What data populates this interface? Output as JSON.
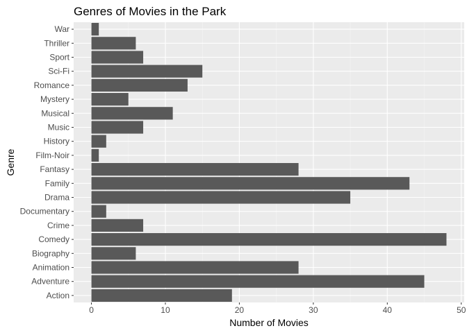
{
  "chart_data": {
    "type": "bar",
    "orientation": "horizontal",
    "title": "Genres of Movies in the Park",
    "xlabel": "Number of Movies",
    "ylabel": "Genre",
    "categories": [
      "Action",
      "Adventure",
      "Animation",
      "Biography",
      "Comedy",
      "Crime",
      "Documentary",
      "Drama",
      "Family",
      "Fantasy",
      "Film-Noir",
      "History",
      "Music",
      "Musical",
      "Mystery",
      "Romance",
      "Sci-Fi",
      "Sport",
      "Thriller",
      "War"
    ],
    "values": [
      19,
      45,
      28,
      6,
      48,
      7,
      2,
      35,
      43,
      28,
      1,
      2,
      7,
      11,
      5,
      13,
      15,
      7,
      6,
      1
    ],
    "xlim": [
      -2.4,
      50.4
    ],
    "x_ticks": [
      0,
      10,
      20,
      30,
      40,
      50
    ],
    "x_minor_ticks": [
      5,
      15,
      25,
      35,
      45
    ],
    "x_tick_labels": [
      "0",
      "10",
      "20",
      "30",
      "40",
      "50"
    ],
    "grid": true,
    "legend": "none",
    "colors": {
      "bar": "#595959",
      "panel": "#ebebeb",
      "grid_major": "#ffffff",
      "grid_minor": "#f5f5f5",
      "tick_text": "#4d4d4d",
      "tick_mark": "#333333"
    }
  }
}
